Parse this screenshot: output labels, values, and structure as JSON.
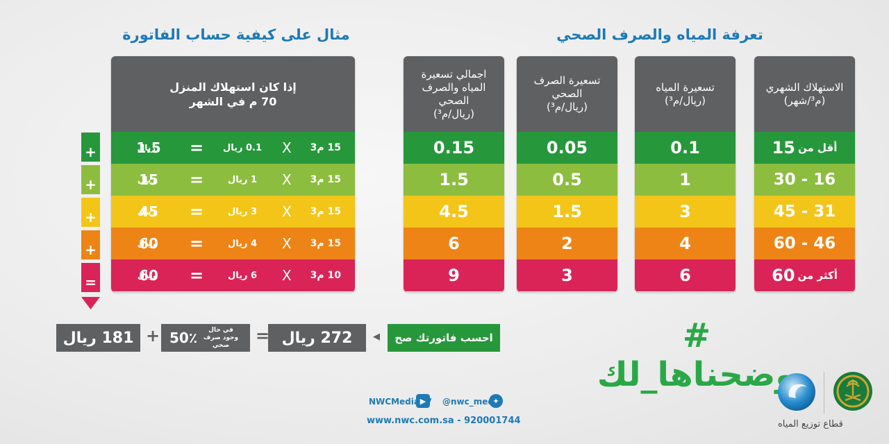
{
  "titles": {
    "tariff": "تعرفة المياه والصرف الصحي",
    "example": "مثال على كيفية حساب الفاتورة"
  },
  "tariff_table": {
    "headers": {
      "consumption": "الاستهلاك الشهري",
      "consumption_unit": "(م³/شهر)",
      "water": "تسعيرة المياه",
      "water_unit": "(ريال/م³)",
      "sewage": "تسعيرة الصرف الصحي",
      "sewage_unit": "(ريال/م³)",
      "total": "اجمالي تسعيرة المياه والصرف الصحي",
      "total_unit": "(ريال/م³)"
    },
    "consumption": [
      "15",
      "16 - 30",
      "31 - 45",
      "46 - 60",
      "60"
    ],
    "consumption_prefix": {
      "first": "أقل من",
      "last": "أكثر من"
    },
    "water": [
      "0.1",
      "1",
      "3",
      "4",
      "6"
    ],
    "sewage": [
      "0.05",
      "0.5",
      "1.5",
      "2",
      "3"
    ],
    "total": [
      "0.15",
      "1.5",
      "4.5",
      "6",
      "9"
    ]
  },
  "example": {
    "header_line1": "إذا كان استهلاك المنزل",
    "header_line2": "70 م   في الشهر",
    "rows": [
      {
        "volume": "15 م3",
        "rate": "0.1 ريال",
        "total": "1.5",
        "total_unit": "ريال"
      },
      {
        "volume": "15 م3",
        "rate": "1 ريال",
        "total": "15",
        "total_unit": "ريال"
      },
      {
        "volume": "15 م3",
        "rate": "3 ريال",
        "total": "45",
        "total_unit": "ريال"
      },
      {
        "volume": "15 م3",
        "rate": "4 ريال",
        "total": "60",
        "total_unit": "ريال"
      },
      {
        "volume": "10 م3",
        "rate": "6 ريال",
        "total": "60",
        "total_unit": "ريال"
      }
    ],
    "multiply_sign": "X",
    "equals_sign": "=",
    "side_signs": [
      "+",
      "+",
      "+",
      "+",
      "="
    ]
  },
  "formula": {
    "calc_button": "احسب فاتورتك صح",
    "arrow": "◀",
    "subtotal": "272 ريال",
    "equals": "=",
    "percent": "50٪",
    "percent_note": "في حال وجود صرف صحي",
    "plus": "+",
    "result": "181 ريال"
  },
  "hashtag": "# وضحناها_لك",
  "footer": {
    "youtube": "NWCMediaTV",
    "twitter": "@nwc_media",
    "website_phone": "www.nwc.com.sa - 920001744",
    "sector_label": "قطاع توزيع المياه"
  },
  "colors": {
    "green": "#27973b",
    "light_green": "#8dbd3f",
    "yellow": "#f3c519",
    "orange": "#ee8416",
    "pink": "#da2457",
    "header_gray": "#5f6062",
    "accent_blue": "#1d7ab4"
  }
}
